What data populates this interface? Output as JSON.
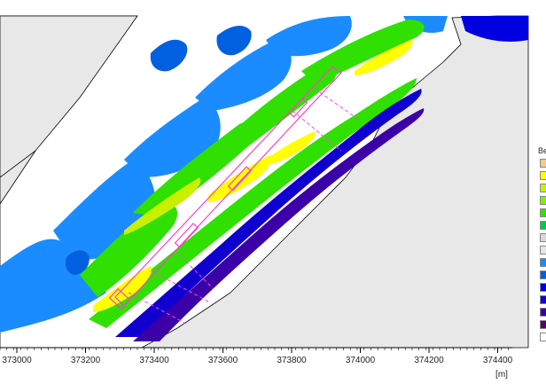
{
  "x_axis": {
    "ticks": [
      "373000",
      "373200",
      "373400",
      "373600",
      "373800",
      "374000",
      "374200",
      "374400"
    ],
    "unit": "[m]"
  },
  "legend": {
    "title": "Be",
    "colors": [
      "#f5c98c",
      "#ffff00",
      "#c8f000",
      "#7ef000",
      "#2fe000",
      "#00c850",
      "#d7d7d7",
      "#e6e6e6",
      "#1a8cff",
      "#0060e0",
      "#0000e0",
      "#1a00c8",
      "#3c00a0",
      "#5a006e",
      "#ffffff"
    ]
  },
  "overlay": {
    "structure_color": "#ff40c8",
    "profile_line_color": "#ff40ff"
  },
  "colors": {
    "land": "#e8e8e8",
    "coastline": "#000000",
    "deep_blue": "#1a8cff",
    "mid_blue": "#0060e0",
    "dark_blue": "#1000d0",
    "indigo": "#3c00a8",
    "green": "#2fe000",
    "yellow_green": "#c8f000",
    "yellow": "#ffff00"
  }
}
